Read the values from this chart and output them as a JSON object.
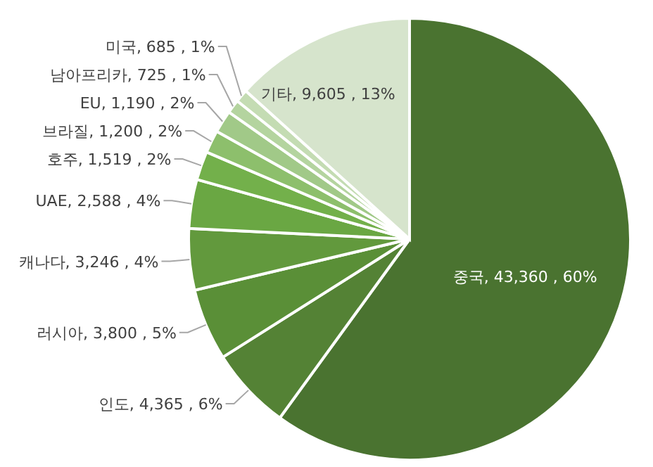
{
  "chart_data": {
    "type": "pie",
    "categories": [
      "중국",
      "인도",
      "러시아",
      "캐나다",
      "UAE",
      "호주",
      "브라질",
      "EU",
      "남아프리카",
      "미국",
      "기타"
    ],
    "values": [
      43360,
      4365,
      3800,
      3246,
      2588,
      1519,
      1200,
      1190,
      725,
      685,
      9605
    ],
    "colors": [
      "#4a7330",
      "#548235",
      "#5a8f37",
      "#62993d",
      "#6aa743",
      "#73b04b",
      "#8dbf6c",
      "#a1c988",
      "#b4d49f",
      "#c4dcb3",
      "#d6e4cc"
    ],
    "value_labels": [
      "43,360 , 60%",
      "4,365 , 6%",
      "3,800 , 5%",
      "3,246 , 4%",
      "2,588 , 4%",
      "1,519 , 2%",
      "1,200 , 2%",
      "1,190 , 2%",
      "725 , 1%",
      "685 , 1%",
      "9,605 , 13%"
    ]
  }
}
